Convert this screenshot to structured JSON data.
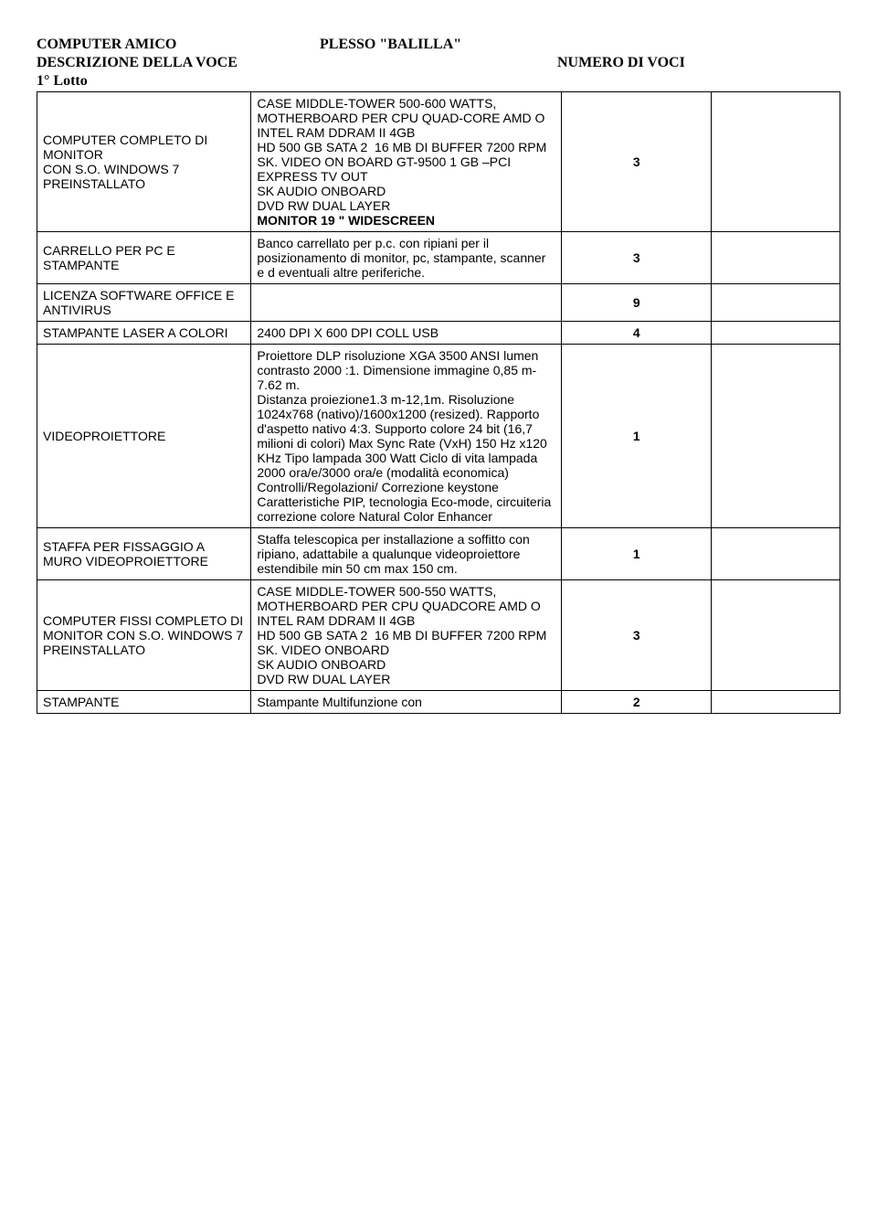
{
  "header": {
    "title_left": "COMPUTER AMICO",
    "title_center": "PLESSO \"BALILLA\"",
    "subtitle_left": "DESCRIZIONE DELLA VOCE",
    "subtitle_right": "NUMERO DI VOCI",
    "lotto": "1° Lotto"
  },
  "columns": {
    "c1_width": 200,
    "c2_width": 290,
    "c3_width": 140,
    "c4_width": 120
  },
  "rows": [
    {
      "label": "COMPUTER COMPLETO DI MONITOR\nCON S.O. WINDOWS 7 PREINSTALLATO",
      "desc_pre": "CASE MIDDLE-TOWER 500-600 WATTS, MOTHERBOARD PER CPU QUAD-CORE AMD O INTEL RAM DDRAM II 4GB\nHD 500 GB SATA 2  16 MB DI BUFFER 7200 RPM\nSK. VIDEO ON BOARD GT-9500 1 GB –PCI EXPRESS TV OUT\nSK AUDIO ONBOARD\nDVD RW DUAL LAYER",
      "desc_bold": "MONITOR 19 \" WIDESCREEN",
      "num": "3"
    },
    {
      "label": "CARRELLO PER PC E STAMPANTE",
      "desc": "Banco carrellato per p.c. con ripiani per il posizionamento di monitor, pc, stampante, scanner e d eventuali altre periferiche.",
      "num": "3"
    },
    {
      "label": "LICENZA SOFTWARE OFFICE E ANTIVIRUS",
      "desc": "",
      "num": "9"
    },
    {
      "label": "STAMPANTE LASER A COLORI",
      "desc": "2400 DPI X 600 DPI COLL USB",
      "num": "4"
    },
    {
      "label": "VIDEOPROIETTORE",
      "desc": "Proiettore DLP risoluzione XGA 3500 ANSI lumen contrasto 2000 :1. Dimensione immagine 0,85 m-7.62 m.\nDistanza proiezione1.3 m-12,1m. Risoluzione 1024x768 (nativo)/1600x1200 (resized). Rapporto d'aspetto nativo 4:3. Supporto colore 24 bit (16,7 milioni di colori) Max Sync Rate (VxH) 150 Hz x120 KHz Tipo lampada 300 Watt Ciclo di vita lampada 2000 ora/e/3000 ora/e (modalità economica) Controlli/Regolazioni/ Correzione keystone Caratteristiche PIP, tecnologia Eco-mode, circuiteria correzione colore Natural Color Enhancer",
      "num": "1"
    },
    {
      "label": "STAFFA PER FISSAGGIO A MURO VIDEOPROIETTORE",
      "desc": "Staffa telescopica per installazione a soffitto con ripiano, adattabile a qualunque videoproiettore estendibile min 50 cm max 150 cm.",
      "num": "1"
    },
    {
      "label": "COMPUTER FISSI COMPLETO DI MONITOR CON S.O. WINDOWS 7 PREINSTALLATO",
      "desc": "CASE MIDDLE-TOWER 500-550 WATTS, MOTHERBOARD PER CPU QUADCORE AMD O INTEL RAM DDRAM II 4GB\nHD 500 GB SATA 2  16 MB DI BUFFER 7200 RPM\nSK. VIDEO ONBOARD\nSK AUDIO ONBOARD\nDVD RW DUAL LAYER",
      "num": "3"
    },
    {
      "label": "STAMPANTE",
      "desc": "Stampante Multifunzione con",
      "num": "2"
    }
  ],
  "style": {
    "body_font": "Times New Roman",
    "table_font": "Arial",
    "border_color": "#000000",
    "bg": "#ffffff",
    "text": "#000000"
  }
}
